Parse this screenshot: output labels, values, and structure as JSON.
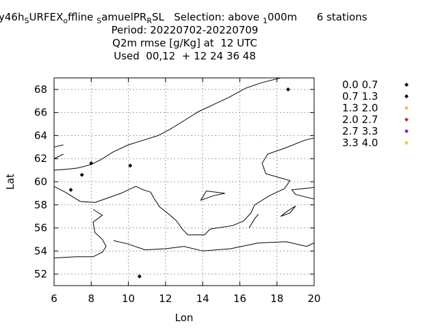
{
  "chart_data": {
    "type": "scatter",
    "title_lines": [
      "y46h",
      "Period: 20220702-20220709",
      "Q2m rmse [g/Kg] at  12 UTC",
      "Used  00,12  + 12 24 36 48"
    ],
    "title_segments": [
      {
        "text": "y46h",
        "sub": false
      },
      {
        "text": "S",
        "sub": true
      },
      {
        "text": "URFEX",
        "sub": false
      },
      {
        "text": "o",
        "sub": true
      },
      {
        "text": "ffline ",
        "sub": false
      },
      {
        "text": "S",
        "sub": true
      },
      {
        "text": "amuelPR",
        "sub": false
      },
      {
        "text": "R",
        "sub": true
      },
      {
        "text": "SL   Selection: above ",
        "sub": false
      },
      {
        "text": "1",
        "sub": true
      },
      {
        "text": "000m      6 stations",
        "sub": false
      }
    ],
    "xlabel": "Lon",
    "ylabel": "Lat",
    "xlim": [
      6,
      20
    ],
    "ylim": [
      51,
      69
    ],
    "xticks": [
      "6",
      "8",
      "10",
      "12",
      "14",
      "16",
      "18",
      "20"
    ],
    "yticks": [
      "52",
      "54",
      "56",
      "58",
      "60",
      "62",
      "64",
      "66",
      "68"
    ],
    "grid": true,
    "legend": {
      "placement": "right",
      "entries": [
        {
          "label": "0.0 0.7",
          "color": "#000000"
        },
        {
          "label": "0.7 1.3",
          "color": "#000000"
        },
        {
          "label": "1.3 2.0",
          "color": "#f0c040"
        },
        {
          "label": "2.0 2.7",
          "color": "#c03020"
        },
        {
          "label": "2.7 3.3",
          "color": "#7a20c0"
        },
        {
          "label": "3.3 4.0",
          "color": "#f0d020"
        }
      ]
    },
    "points": [
      {
        "lon": 18.6,
        "lat": 68.0,
        "bin": 0
      },
      {
        "lon": 8.0,
        "lat": 61.6,
        "bin": 0
      },
      {
        "lon": 10.1,
        "lat": 61.4,
        "bin": 0
      },
      {
        "lon": 7.5,
        "lat": 60.6,
        "bin": 0
      },
      {
        "lon": 6.9,
        "lat": 59.3,
        "bin": 0
      },
      {
        "lon": 10.6,
        "lat": 51.8,
        "bin": 0
      }
    ]
  }
}
